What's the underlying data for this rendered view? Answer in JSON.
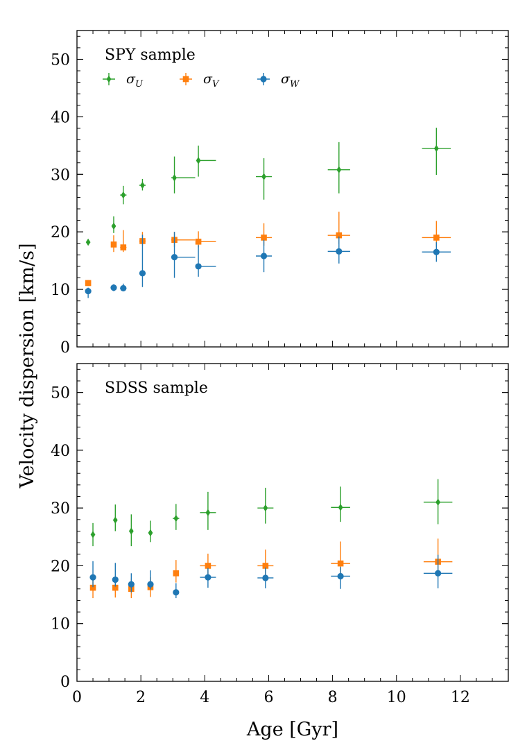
{
  "chart_data": [
    {
      "type": "scatter",
      "title": "SPY sample",
      "xlabel": "Age [Gyr]",
      "ylabel": "Velocity dispersion [km/s]",
      "xlim": [
        0,
        13.5
      ],
      "ylim": [
        0,
        55
      ],
      "xticks": [
        0,
        2,
        4,
        6,
        8,
        10,
        12
      ],
      "yticks": [
        0,
        10,
        20,
        30,
        40,
        50
      ],
      "legend": {
        "position": "upper-left",
        "entries": [
          "σ_U",
          "σ_V",
          "σ_W"
        ]
      },
      "series": [
        {
          "name": "σ_U",
          "symbol": "σ",
          "subscript": "U",
          "color": "#2ca02c",
          "marker": "diamond",
          "points": [
            {
              "x": 0.35,
              "y": 18.2,
              "xerr": [
                0.05,
                0.05
              ],
              "yerr": [
                0.5,
                0.5
              ]
            },
            {
              "x": 1.15,
              "y": 21.0,
              "xerr": [
                0.05,
                0.05
              ],
              "yerr": [
                1.2,
                1.7
              ]
            },
            {
              "x": 1.45,
              "y": 26.4,
              "xerr": [
                0.1,
                0.1
              ],
              "yerr": [
                1.6,
                1.6
              ]
            },
            {
              "x": 2.05,
              "y": 28.1,
              "xerr": [
                0.1,
                0.1
              ],
              "yerr": [
                0.9,
                1.1
              ]
            },
            {
              "x": 3.05,
              "y": 29.4,
              "xerr": [
                0.1,
                0.65
              ],
              "yerr": [
                2.7,
                3.7
              ]
            },
            {
              "x": 3.8,
              "y": 32.4,
              "xerr": [
                0.05,
                0.55
              ],
              "yerr": [
                2.8,
                2.6
              ]
            },
            {
              "x": 5.85,
              "y": 29.6,
              "xerr": [
                0.25,
                0.25
              ],
              "yerr": [
                4.0,
                3.2
              ]
            },
            {
              "x": 8.2,
              "y": 30.8,
              "xerr": [
                0.35,
                0.35
              ],
              "yerr": [
                4.1,
                4.8
              ]
            },
            {
              "x": 11.25,
              "y": 34.5,
              "xerr": [
                0.45,
                0.45
              ],
              "yerr": [
                4.6,
                3.6
              ]
            }
          ]
        },
        {
          "name": "σ_V",
          "symbol": "σ",
          "subscript": "V",
          "color": "#ff7f0e",
          "marker": "square",
          "points": [
            {
              "x": 0.35,
              "y": 11.1,
              "xerr": [
                0.05,
                0.05
              ],
              "yerr": [
                0.5,
                0.5
              ]
            },
            {
              "x": 1.15,
              "y": 17.8,
              "xerr": [
                0.05,
                0.05
              ],
              "yerr": [
                1.3,
                1.6
              ]
            },
            {
              "x": 1.45,
              "y": 17.3,
              "xerr": [
                0.1,
                0.1
              ],
              "yerr": [
                0.8,
                3.0
              ]
            },
            {
              "x": 2.05,
              "y": 18.4,
              "xerr": [
                0.1,
                0.1
              ],
              "yerr": [
                0.8,
                1.6
              ]
            },
            {
              "x": 3.05,
              "y": 18.6,
              "xerr": [
                0.1,
                0.65
              ],
              "yerr": [
                1.2,
                1.4
              ]
            },
            {
              "x": 3.8,
              "y": 18.3,
              "xerr": [
                0.05,
                0.55
              ],
              "yerr": [
                1.0,
                1.8
              ]
            },
            {
              "x": 5.85,
              "y": 19.0,
              "xerr": [
                0.25,
                0.25
              ],
              "yerr": [
                1.4,
                2.5
              ]
            },
            {
              "x": 8.2,
              "y": 19.4,
              "xerr": [
                0.35,
                0.35
              ],
              "yerr": [
                1.5,
                4.1
              ]
            },
            {
              "x": 11.25,
              "y": 19.0,
              "xerr": [
                0.45,
                0.45
              ],
              "yerr": [
                1.6,
                2.9
              ]
            }
          ]
        },
        {
          "name": "σ_W",
          "symbol": "σ",
          "subscript": "W",
          "color": "#1f77b4",
          "marker": "circle",
          "points": [
            {
              "x": 0.35,
              "y": 9.7,
              "xerr": [
                0.05,
                0.05
              ],
              "yerr": [
                1.2,
                0.6
              ]
            },
            {
              "x": 1.15,
              "y": 10.3,
              "xerr": [
                0.05,
                0.05
              ],
              "yerr": [
                0.6,
                0.6
              ]
            },
            {
              "x": 1.45,
              "y": 10.2,
              "xerr": [
                0.1,
                0.1
              ],
              "yerr": [
                0.5,
                0.8
              ]
            },
            {
              "x": 2.05,
              "y": 12.8,
              "xerr": [
                0.1,
                0.1
              ],
              "yerr": [
                2.4,
                6.7
              ]
            },
            {
              "x": 3.05,
              "y": 15.6,
              "xerr": [
                0.1,
                0.65
              ],
              "yerr": [
                3.6,
                4.4
              ]
            },
            {
              "x": 3.8,
              "y": 14.0,
              "xerr": [
                0.05,
                0.55
              ],
              "yerr": [
                1.8,
                3.7
              ]
            },
            {
              "x": 5.85,
              "y": 15.8,
              "xerr": [
                0.25,
                0.25
              ],
              "yerr": [
                2.8,
                2.8
              ]
            },
            {
              "x": 8.2,
              "y": 16.6,
              "xerr": [
                0.35,
                0.35
              ],
              "yerr": [
                2.1,
                2.6
              ]
            },
            {
              "x": 11.25,
              "y": 16.5,
              "xerr": [
                0.45,
                0.45
              ],
              "yerr": [
                1.7,
                1.7
              ]
            }
          ]
        }
      ]
    },
    {
      "type": "scatter",
      "title": "SDSS sample",
      "xlabel": "Age [Gyr]",
      "ylabel": "Velocity dispersion [km/s]",
      "xlim": [
        0,
        13.5
      ],
      "ylim": [
        0,
        55
      ],
      "xticks": [
        0,
        2,
        4,
        6,
        8,
        10,
        12
      ],
      "yticks": [
        0,
        10,
        20,
        30,
        40,
        50
      ],
      "series": [
        {
          "name": "σ_U",
          "color": "#2ca02c",
          "marker": "diamond",
          "points": [
            {
              "x": 0.5,
              "y": 25.4,
              "xerr": [
                0.05,
                0.05
              ],
              "yerr": [
                2.0,
                2.0
              ]
            },
            {
              "x": 1.2,
              "y": 27.9,
              "xerr": [
                0.05,
                0.05
              ],
              "yerr": [
                1.9,
                2.7
              ]
            },
            {
              "x": 1.7,
              "y": 26.0,
              "xerr": [
                0.05,
                0.05
              ],
              "yerr": [
                2.6,
                2.9
              ]
            },
            {
              "x": 2.3,
              "y": 25.7,
              "xerr": [
                0.05,
                0.05
              ],
              "yerr": [
                1.6,
                2.1
              ]
            },
            {
              "x": 3.1,
              "y": 28.2,
              "xerr": [
                0.1,
                0.1
              ],
              "yerr": [
                2.0,
                2.5
              ]
            },
            {
              "x": 4.1,
              "y": 29.2,
              "xerr": [
                0.25,
                0.25
              ],
              "yerr": [
                3.0,
                3.6
              ]
            },
            {
              "x": 5.9,
              "y": 30.0,
              "xerr": [
                0.25,
                0.25
              ],
              "yerr": [
                2.7,
                3.5
              ]
            },
            {
              "x": 8.25,
              "y": 30.1,
              "xerr": [
                0.3,
                0.3
              ],
              "yerr": [
                2.5,
                3.6
              ]
            },
            {
              "x": 11.3,
              "y": 31.0,
              "xerr": [
                0.45,
                0.45
              ],
              "yerr": [
                3.8,
                4.0
              ]
            }
          ]
        },
        {
          "name": "σ_V",
          "color": "#ff7f0e",
          "marker": "square",
          "points": [
            {
              "x": 0.5,
              "y": 16.2,
              "xerr": [
                0.05,
                0.05
              ],
              "yerr": [
                1.8,
                1.8
              ]
            },
            {
              "x": 1.2,
              "y": 16.2,
              "xerr": [
                0.05,
                0.05
              ],
              "yerr": [
                1.7,
                1.9
              ]
            },
            {
              "x": 1.7,
              "y": 16.0,
              "xerr": [
                0.05,
                0.05
              ],
              "yerr": [
                1.6,
                1.8
              ]
            },
            {
              "x": 2.3,
              "y": 16.3,
              "xerr": [
                0.05,
                0.05
              ],
              "yerr": [
                1.7,
                1.7
              ]
            },
            {
              "x": 3.1,
              "y": 18.7,
              "xerr": [
                0.05,
                0.05
              ],
              "yerr": [
                1.6,
                2.3
              ]
            },
            {
              "x": 4.1,
              "y": 20.0,
              "xerr": [
                0.25,
                0.25
              ],
              "yerr": [
                1.6,
                2.1
              ]
            },
            {
              "x": 5.9,
              "y": 20.0,
              "xerr": [
                0.25,
                0.25
              ],
              "yerr": [
                1.6,
                2.8
              ]
            },
            {
              "x": 8.25,
              "y": 20.4,
              "xerr": [
                0.3,
                0.3
              ],
              "yerr": [
                1.8,
                3.8
              ]
            },
            {
              "x": 11.3,
              "y": 20.7,
              "xerr": [
                0.45,
                0.45
              ],
              "yerr": [
                1.9,
                4.0
              ]
            }
          ]
        },
        {
          "name": "σ_W",
          "color": "#1f77b4",
          "marker": "circle",
          "points": [
            {
              "x": 0.5,
              "y": 18.0,
              "xerr": [
                0.05,
                0.05
              ],
              "yerr": [
                1.7,
                2.8
              ]
            },
            {
              "x": 1.2,
              "y": 17.6,
              "xerr": [
                0.05,
                0.05
              ],
              "yerr": [
                1.2,
                2.9
              ]
            },
            {
              "x": 1.7,
              "y": 16.8,
              "xerr": [
                0.05,
                0.05
              ],
              "yerr": [
                1.4,
                1.9
              ]
            },
            {
              "x": 2.3,
              "y": 16.8,
              "xerr": [
                0.05,
                0.05
              ],
              "yerr": [
                0.9,
                2.4
              ]
            },
            {
              "x": 3.1,
              "y": 15.4,
              "xerr": [
                0.05,
                0.05
              ],
              "yerr": [
                1.0,
                1.6
              ]
            },
            {
              "x": 4.1,
              "y": 18.0,
              "xerr": [
                0.25,
                0.25
              ],
              "yerr": [
                1.8,
                1.6
              ]
            },
            {
              "x": 5.9,
              "y": 17.9,
              "xerr": [
                0.25,
                0.25
              ],
              "yerr": [
                1.8,
                1.8
              ]
            },
            {
              "x": 8.25,
              "y": 18.2,
              "xerr": [
                0.3,
                0.3
              ],
              "yerr": [
                2.2,
                1.6
              ]
            },
            {
              "x": 11.3,
              "y": 18.7,
              "xerr": [
                0.45,
                0.45
              ],
              "yerr": [
                2.6,
                3.2
              ]
            }
          ]
        }
      ]
    }
  ]
}
